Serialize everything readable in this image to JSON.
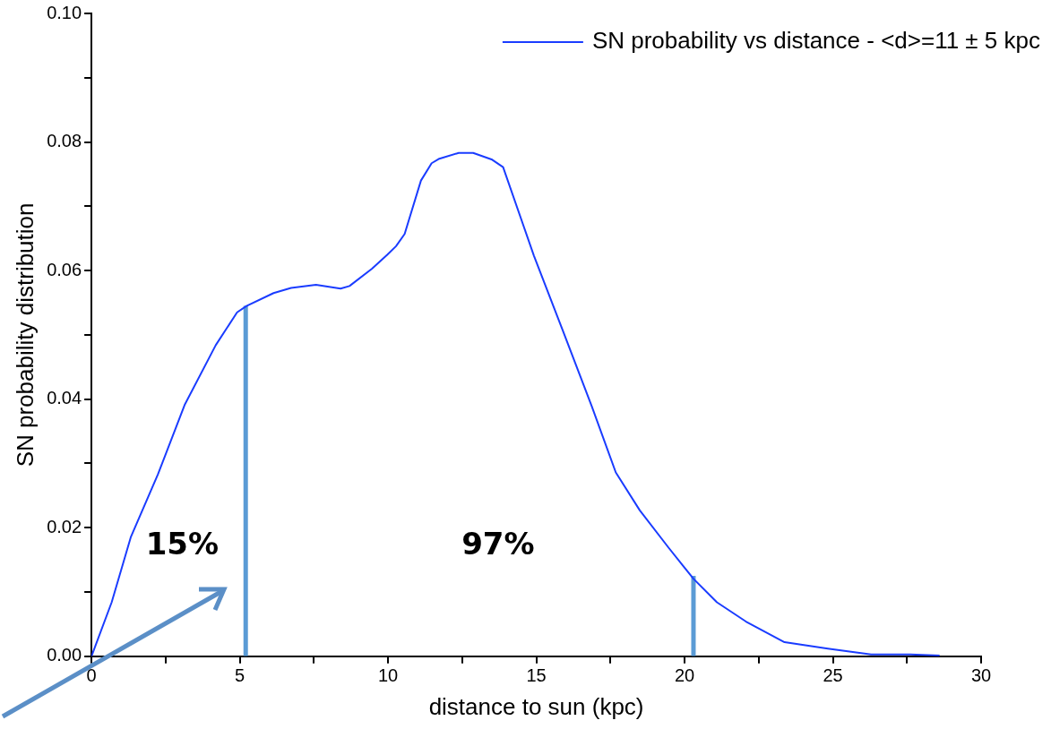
{
  "chart_data": {
    "type": "line",
    "xlabel": "distance to sun (kpc)",
    "ylabel": "SN probability distribution",
    "xlim": [
      0,
      30
    ],
    "ylim": [
      0,
      0.1
    ],
    "xticks": [
      0,
      {
        "value": 2.5,
        "label": null
      },
      5,
      {
        "value": 7.5,
        "label": null
      },
      10,
      {
        "value": 12.5,
        "label": null
      },
      15,
      {
        "value": 17.5,
        "label": null
      },
      20,
      {
        "value": 22.5,
        "label": null
      },
      25,
      {
        "value": 27.5,
        "label": null
      },
      30
    ],
    "yticks": [
      {
        "value": 0,
        "label": "0.00"
      },
      {
        "value": 0.01,
        "label": null
      },
      {
        "value": 0.02,
        "label": "0.02"
      },
      {
        "value": 0.03,
        "label": null
      },
      {
        "value": 0.04,
        "label": "0.04"
      },
      {
        "value": 0.05,
        "label": null
      },
      {
        "value": 0.06,
        "label": "0.06"
      },
      {
        "value": 0.07,
        "label": null
      },
      {
        "value": 0.08,
        "label": "0.08"
      },
      {
        "value": 0.09,
        "label": null
      },
      {
        "value": 0.1,
        "label": "0.10"
      }
    ],
    "grid": false,
    "legend": "top right",
    "marker": "none",
    "line_style": "solid",
    "series": [
      {
        "name": "SN probability vs distance - <d>=11 ± 5 kpc",
        "color": "#1a3cff",
        "x": [
          0,
          0.68,
          1.33,
          2.24,
          3.15,
          4.19,
          4.91,
          5.23,
          6.14,
          6.73,
          7.57,
          8.4,
          8.7,
          9.46,
          9.98,
          10.27,
          10.56,
          11.11,
          11.47,
          11.73,
          12.38,
          12.87,
          13.49,
          13.88,
          14.92,
          15.9,
          16.87,
          17.68,
          18.49,
          19.46,
          20.31,
          21.09,
          22.07,
          23.37,
          24.83,
          26.29,
          27.59,
          28.6
        ],
        "values": [
          0,
          0.0084,
          0.0186,
          0.0283,
          0.0392,
          0.0484,
          0.0535,
          0.0545,
          0.0565,
          0.0573,
          0.0578,
          0.0572,
          0.0576,
          0.0603,
          0.0625,
          0.0638,
          0.0657,
          0.074,
          0.0767,
          0.0774,
          0.0783,
          0.0783,
          0.0773,
          0.0761,
          0.0623,
          0.0506,
          0.0389,
          0.0286,
          0.0227,
          0.0169,
          0.012,
          0.0084,
          0.0054,
          0.0022,
          0.0012,
          0.0003,
          0.0003,
          0.0001
        ]
      },
      {
        "color": "#5b9bd5",
        "x": [
          5.2,
          5.2
        ],
        "values": [
          0,
          0.0545
        ]
      },
      {
        "color": "#5b9bd5",
        "x": [
          20.3,
          20.3
        ],
        "values": [
          0,
          0.0125
        ]
      }
    ],
    "annotations": [
      "15%",
      "97%"
    ]
  }
}
